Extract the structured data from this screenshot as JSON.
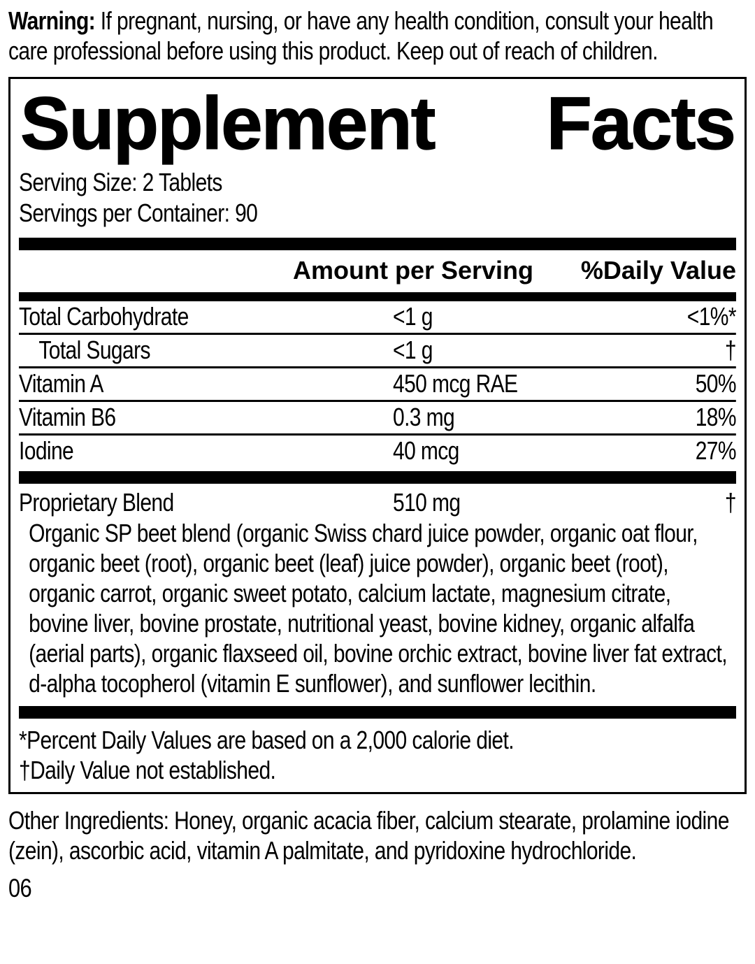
{
  "colors": {
    "text": "#000000",
    "background": "#ffffff"
  },
  "warning": {
    "label": "Warning:",
    "text": "If pregnant, nursing, or have any health condition, consult your health care professional before using this product. Keep out of reach of children."
  },
  "panel": {
    "title": {
      "word1": "Supplement",
      "word2": "Facts"
    },
    "serving_size": "Serving Size: 2 Tablets",
    "servings_per_container": "Servings per Container: 90",
    "column_headers": {
      "amount": "Amount per Serving",
      "daily_value": "%Daily Value"
    },
    "rows": [
      {
        "name": "Total Carbohydrate",
        "amount": "<1 g",
        "daily_value": "<1%*"
      },
      {
        "name": "Total Sugars",
        "amount": "<1 g",
        "daily_value": "†"
      },
      {
        "name": "Vitamin A",
        "amount": "450 mcg RAE",
        "daily_value": "50%"
      },
      {
        "name": "Vitamin B6",
        "amount": "0.3 mg",
        "daily_value": "18%"
      },
      {
        "name": "Iodine",
        "amount": "40 mcg",
        "daily_value": "27%"
      }
    ],
    "proprietary_blend": {
      "name": "Proprietary Blend",
      "amount": "510 mg",
      "daily_value": "†",
      "description": "Organic SP beet blend (organic Swiss chard juice powder, organic oat flour, organic beet (root), organic beet (leaf) juice powder), organic beet (root), organic carrot, organic sweet potato, calcium lactate, magnesium citrate, bovine liver, bovine prostate, nutritional yeast, bovine kidney, organic alfalfa (aerial parts), organic flaxseed oil, bovine orchic extract, bovine liver fat extract, d-alpha tocopherol (vitamin E sunflower), and sunflower lecithin."
    },
    "footnotes": [
      "*Percent Daily Values are based on a 2,000 calorie diet.",
      "†Daily Value not established."
    ]
  },
  "other_ingredients": {
    "label": "Other Ingredients:",
    "text": "Honey, organic acacia fiber, calcium stearate, prolamine iodine (zein), ascorbic acid, vitamin A palmitate, and pyridoxine hydrochloride."
  },
  "footer_code": "06"
}
